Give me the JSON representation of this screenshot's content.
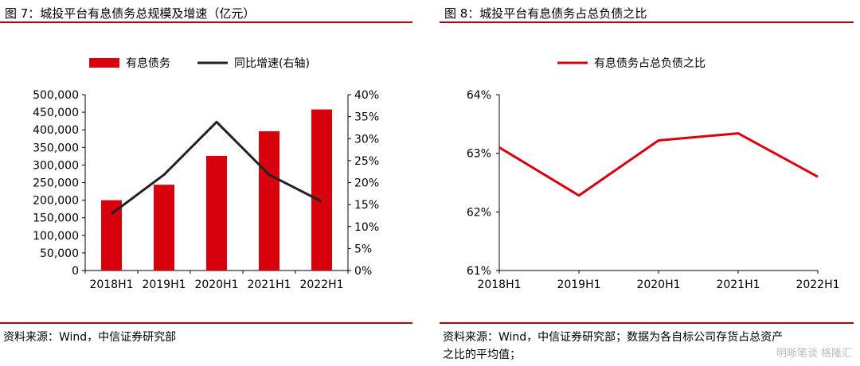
{
  "left": {
    "figure_title": "图 7：城投平台有息债务总规模及增速（亿元）",
    "source": "资料来源：Wind，中信证券研究部"
  },
  "right": {
    "figure_title": "图 8：城投平台有息债务占总负债之比",
    "source_line1": "资料来源：Wind，中信证券研究部；数据为各自标公司存货占总资产",
    "source_line2": "之比的平均值；"
  },
  "watermark": "明晰笔谈 格隆汇",
  "colors": {
    "bar": "#d9000d",
    "line_left": "#222222",
    "line_right": "#d9000d",
    "rule": "#c00000"
  },
  "chart_data": [
    {
      "type": "bar",
      "categories": [
        "2018H1",
        "2019H1",
        "2020H1",
        "2021H1",
        "2022H1"
      ],
      "series": [
        {
          "name": "有息债务",
          "type": "bar",
          "axis": "left",
          "values": [
            200000,
            244000,
            326000,
            396000,
            458000
          ]
        },
        {
          "name": "同比增速(右轴)",
          "type": "line",
          "axis": "right",
          "values": [
            12.9,
            21.8,
            33.8,
            21.8,
            15.7
          ]
        }
      ],
      "ylim_left": [
        0,
        500000
      ],
      "ylim_right": [
        0,
        40
      ],
      "yticks_left": [
        "0",
        "50,000",
        "100,000",
        "150,000",
        "200,000",
        "250,000",
        "300,000",
        "350,000",
        "400,000",
        "450,000",
        "500,000"
      ],
      "yticks_right": [
        "0%",
        "5%",
        "10%",
        "15%",
        "20%",
        "25%",
        "30%",
        "35%",
        "40%"
      ],
      "legend_position": "top",
      "grid": false
    },
    {
      "type": "line",
      "categories": [
        "2018H1",
        "2019H1",
        "2020H1",
        "2021H1",
        "2022H1"
      ],
      "series": [
        {
          "name": "有息债务占总负债之比",
          "values": [
            63.1,
            62.28,
            63.22,
            63.34,
            62.6
          ]
        }
      ],
      "ylim": [
        61,
        64
      ],
      "yticks": [
        "61%",
        "62%",
        "63%",
        "64%"
      ],
      "legend_position": "top",
      "grid": false
    }
  ]
}
